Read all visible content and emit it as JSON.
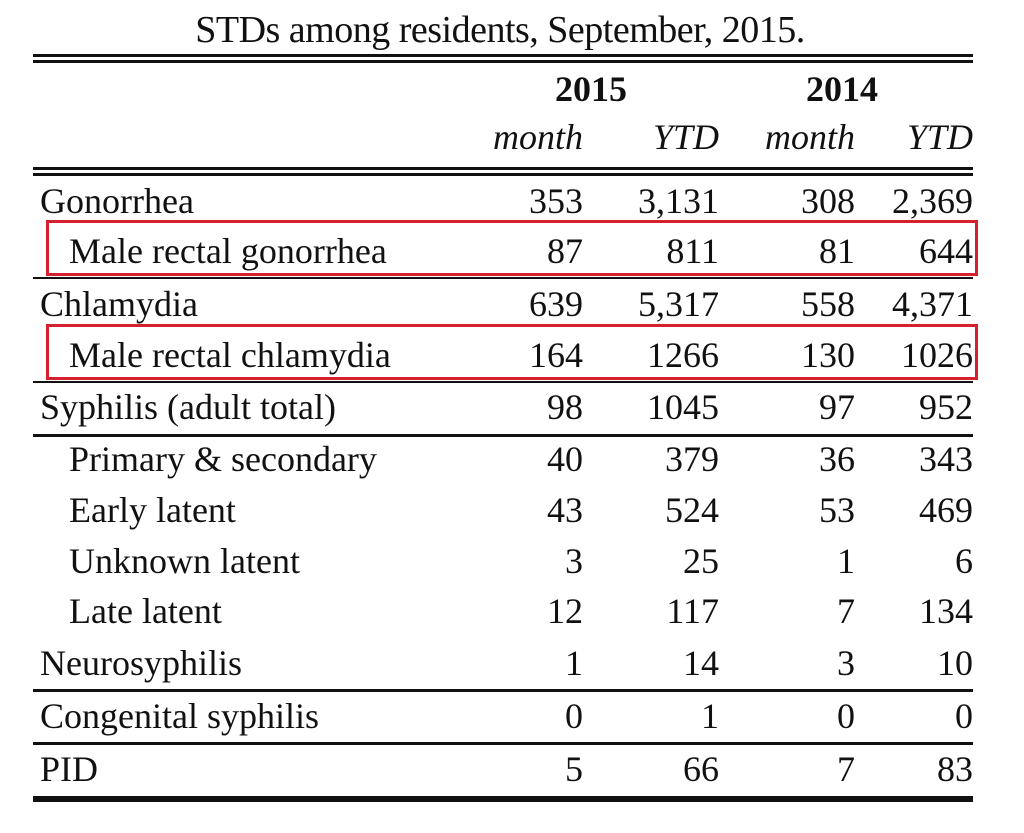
{
  "caption": "STDs among residents, September, 2015.",
  "header": {
    "years": [
      "2015",
      "2014"
    ],
    "subcolumns": [
      "month",
      "YTD",
      "month",
      "YTD"
    ]
  },
  "highlight_color": "#d3212d",
  "rows": [
    {
      "label": "Gonorrhea",
      "values": [
        "353",
        "3,131",
        "308",
        "2,369"
      ],
      "indent": false,
      "highlighted": false
    },
    {
      "label": "Male rectal gonorrhea",
      "values": [
        "87",
        "811",
        "81",
        "644"
      ],
      "indent": true,
      "highlighted": true
    },
    {
      "label": "Chlamydia",
      "values": [
        "639",
        "5,317",
        "558",
        "4,371"
      ],
      "indent": false,
      "highlighted": false
    },
    {
      "label": "Male rectal chlamydia",
      "values": [
        "164",
        "1266",
        "130",
        "1026"
      ],
      "indent": true,
      "highlighted": true
    },
    {
      "label": "Syphilis (adult total)",
      "values": [
        "98",
        "1045",
        "97",
        "952"
      ],
      "indent": false,
      "highlighted": false
    },
    {
      "label": "Primary & secondary",
      "values": [
        "40",
        "379",
        "36",
        "343"
      ],
      "indent": true,
      "highlighted": false
    },
    {
      "label": "Early latent",
      "values": [
        "43",
        "524",
        "53",
        "469"
      ],
      "indent": true,
      "highlighted": false
    },
    {
      "label": "Unknown latent",
      "values": [
        "3",
        "25",
        "1",
        "6"
      ],
      "indent": true,
      "highlighted": false
    },
    {
      "label": "Late latent",
      "values": [
        "12",
        "117",
        "7",
        "134"
      ],
      "indent": true,
      "highlighted": false
    },
    {
      "label": "Neurosyphilis",
      "values": [
        "1",
        "14",
        "3",
        "10"
      ],
      "indent": false,
      "highlighted": false
    },
    {
      "label": "Congenital syphilis",
      "values": [
        "0",
        "1",
        "0",
        "0"
      ],
      "indent": false,
      "highlighted": false
    },
    {
      "label": "PID",
      "values": [
        "5",
        "66",
        "7",
        "83"
      ],
      "indent": false,
      "highlighted": false
    }
  ]
}
